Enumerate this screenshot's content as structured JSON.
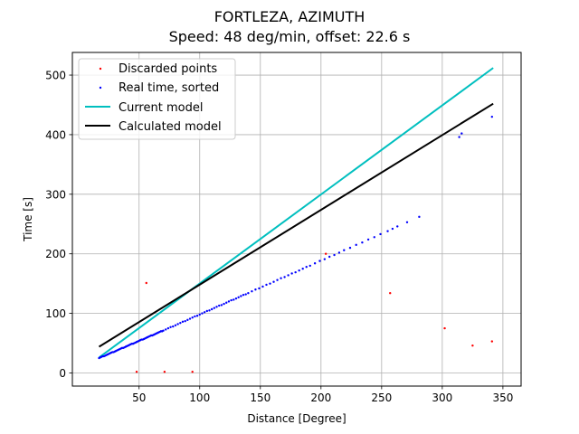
{
  "chart_data": {
    "type": "scatter",
    "title": "FORTLEZA, AZIMUTH",
    "subtitle": "Speed: 48 deg/min, offset: 22.6 s",
    "xlabel": "Distance [Degree]",
    "ylabel": "Time [s]",
    "xlim": [
      -5,
      365
    ],
    "ylim": [
      -22,
      538
    ],
    "xticks": [
      50,
      100,
      150,
      200,
      250,
      300,
      350
    ],
    "yticks": [
      0,
      100,
      200,
      300,
      400,
      500
    ],
    "grid": true,
    "legend_position": "upper-left",
    "colors": {
      "discarded": "#ff0000",
      "real": "#0000ff",
      "current": "#00bfbf",
      "calculated": "#000000",
      "grid": "#b0b0b0"
    },
    "series": [
      {
        "name": "Discarded points",
        "kind": "points",
        "x": [
          48,
          56,
          71,
          94,
          204,
          257,
          302,
          325,
          341
        ],
        "y": [
          2,
          151,
          2,
          2,
          200,
          134,
          75,
          46,
          53
        ]
      },
      {
        "name": "Real time, sorted",
        "kind": "points",
        "x": [
          17,
          18,
          19,
          20,
          21,
          22,
          23,
          24,
          25,
          26,
          27,
          28,
          29,
          30,
          31,
          32,
          33,
          34,
          35,
          36,
          37,
          38,
          39,
          40,
          41,
          42,
          43,
          44,
          45,
          46,
          47,
          48,
          49,
          50,
          51,
          52,
          53,
          54,
          55,
          56,
          57,
          58,
          59,
          60,
          61,
          62,
          63,
          64,
          65,
          66,
          67,
          68,
          69,
          70,
          72,
          74,
          76,
          78,
          80,
          82,
          84,
          86,
          88,
          90,
          92,
          94,
          96,
          98,
          100,
          102,
          104,
          106,
          108,
          110,
          112,
          114,
          116,
          118,
          120,
          122,
          124,
          126,
          128,
          130,
          132,
          134,
          136,
          138,
          140,
          143,
          146,
          149,
          152,
          155,
          158,
          161,
          164,
          167,
          170,
          173,
          176,
          179,
          182,
          185,
          188,
          191,
          195,
          199,
          203,
          207,
          211,
          215,
          219,
          224,
          229,
          234,
          239,
          244,
          249,
          255,
          259,
          263,
          271,
          281,
          314,
          316,
          341
        ],
        "y": [
          25,
          26,
          27,
          28,
          28,
          29,
          30,
          31,
          32,
          33,
          34,
          35,
          35,
          36,
          37,
          38,
          39,
          40,
          41,
          42,
          42,
          43,
          44,
          45,
          46,
          47,
          48,
          49,
          49,
          50,
          51,
          52,
          53,
          54,
          55,
          56,
          56,
          57,
          58,
          59,
          60,
          61,
          62,
          63,
          63,
          64,
          65,
          66,
          67,
          68,
          69,
          70,
          70,
          71,
          73,
          75,
          77,
          78,
          80,
          82,
          84,
          86,
          87,
          89,
          91,
          93,
          95,
          96,
          98,
          100,
          102,
          104,
          105,
          107,
          109,
          111,
          113,
          114,
          116,
          118,
          120,
          122,
          123,
          125,
          127,
          129,
          131,
          132,
          134,
          137,
          140,
          142,
          145,
          148,
          150,
          153,
          156,
          159,
          161,
          164,
          167,
          169,
          172,
          175,
          178,
          180,
          184,
          188,
          191,
          195,
          198,
          202,
          206,
          210,
          215,
          219,
          224,
          228,
          233,
          238,
          242,
          246,
          253,
          262,
          396,
          402,
          430
        ]
      },
      {
        "name": "Current model",
        "kind": "line",
        "x": [
          17,
          342
        ],
        "y": [
          26,
          512
        ]
      },
      {
        "name": "Calculated model",
        "kind": "line",
        "x": [
          17,
          342
        ],
        "y": [
          44,
          452
        ]
      }
    ]
  }
}
